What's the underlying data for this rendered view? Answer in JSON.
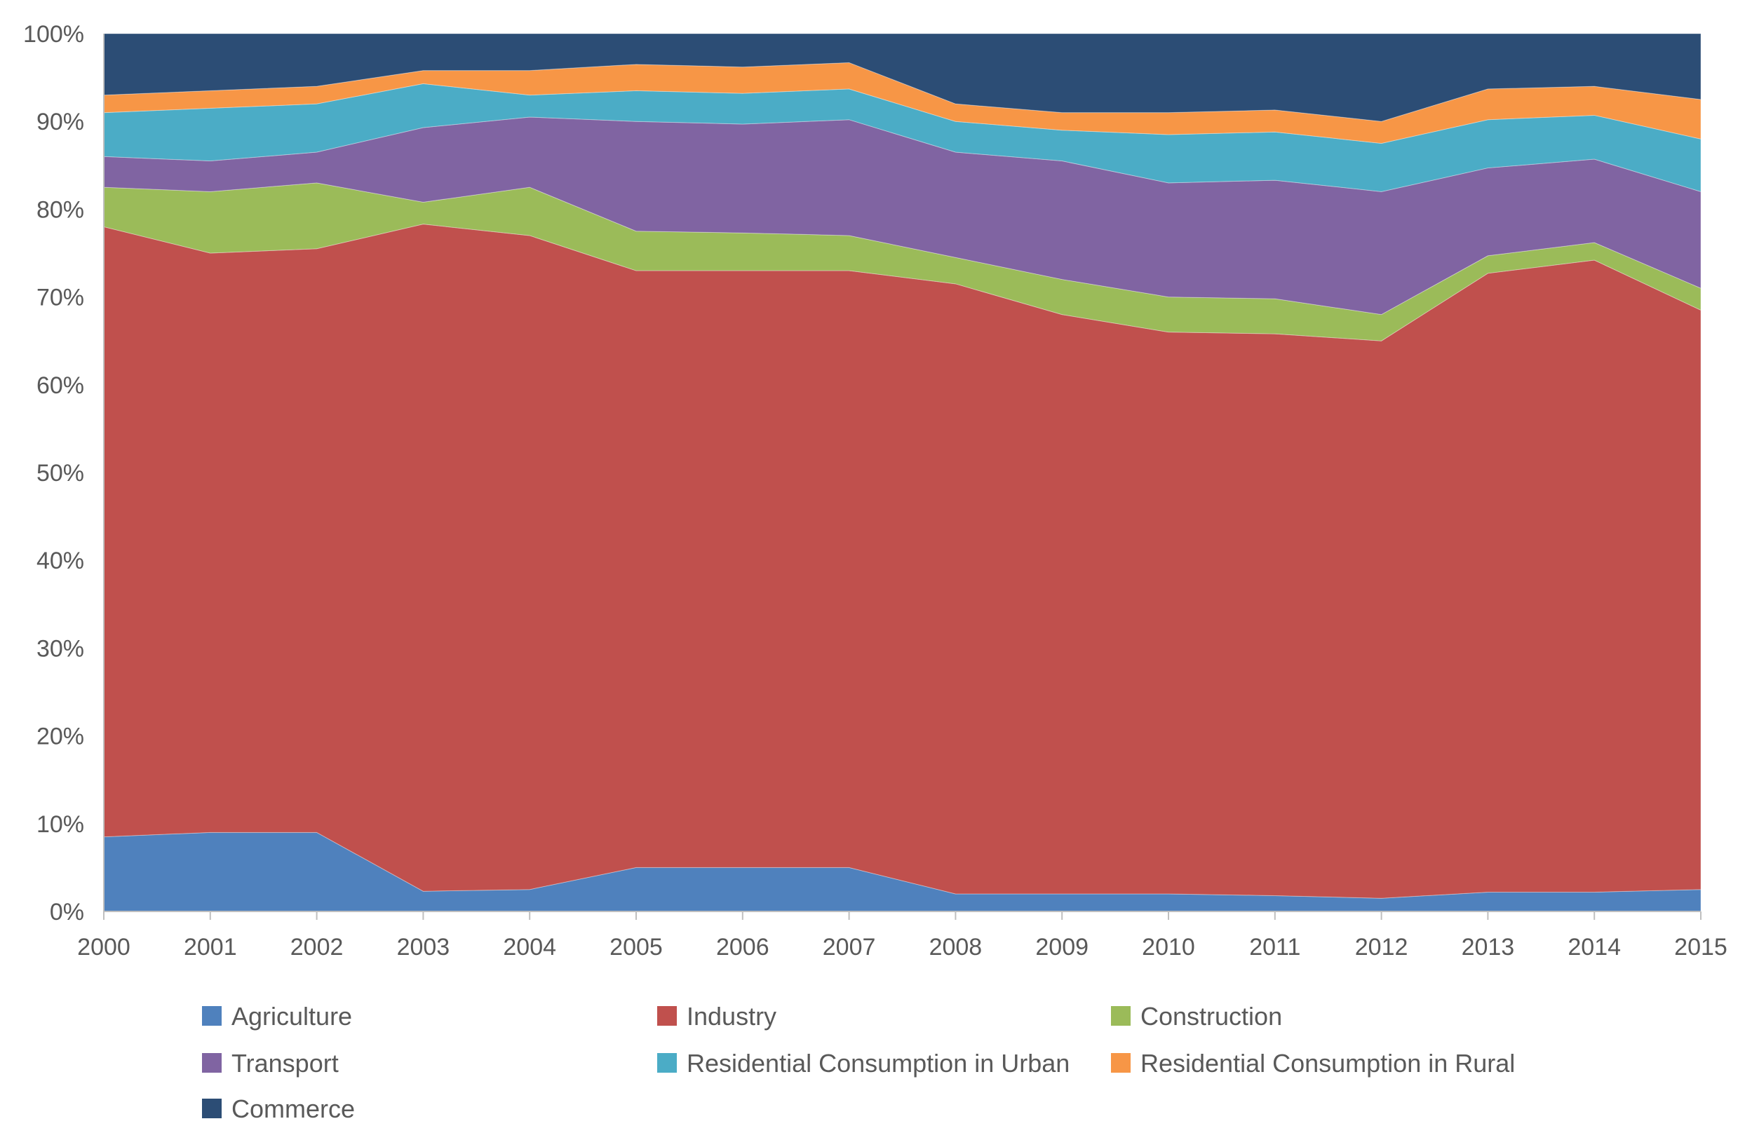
{
  "chart_data": {
    "type": "area",
    "stacking": "percent",
    "x": [
      "2000",
      "2001",
      "2002",
      "2003",
      "2004",
      "2005",
      "2006",
      "2007",
      "2008",
      "2009",
      "2010",
      "2011",
      "2012",
      "2013",
      "2014",
      "2015"
    ],
    "ylim": [
      0,
      100
    ],
    "y_ticks": [
      "0%",
      "10%",
      "20%",
      "30%",
      "40%",
      "50%",
      "60%",
      "70%",
      "80%",
      "90%",
      "100%"
    ],
    "grid": false,
    "legend_position": "bottom",
    "series": [
      {
        "name": "Agriculture",
        "color": "#4F81BD",
        "values": [
          8.5,
          9.0,
          9.0,
          2.3,
          2.5,
          5.0,
          5.0,
          5.0,
          2.0,
          2.0,
          2.0,
          1.8,
          1.5,
          2.2,
          2.2,
          2.5
        ]
      },
      {
        "name": "Industry",
        "color": "#C0504D",
        "values": [
          69.5,
          66.0,
          66.5,
          76.0,
          74.5,
          68.0,
          68.0,
          68.0,
          69.5,
          66.0,
          64.0,
          64.0,
          63.5,
          70.5,
          72.0,
          66.0
        ]
      },
      {
        "name": "Construction",
        "color": "#9BBB59",
        "values": [
          4.5,
          7.0,
          7.5,
          2.5,
          5.5,
          4.5,
          4.3,
          4.0,
          3.0,
          4.0,
          4.0,
          4.0,
          3.0,
          2.0,
          2.0,
          2.5
        ]
      },
      {
        "name": "Transport",
        "color": "#8064A2",
        "values": [
          3.5,
          3.5,
          3.5,
          8.5,
          8.0,
          12.5,
          12.4,
          13.2,
          12.0,
          13.5,
          13.0,
          13.5,
          14.0,
          10.0,
          9.5,
          11.0
        ]
      },
      {
        "name": "Residential Consumption in Urban",
        "color": "#4BACC6",
        "values": [
          5.0,
          6.0,
          5.5,
          5.0,
          2.5,
          3.5,
          3.5,
          3.5,
          3.5,
          3.5,
          5.5,
          5.5,
          5.5,
          5.5,
          5.0,
          6.0
        ]
      },
      {
        "name": "Residential Consumption in Rural",
        "color": "#F79646",
        "values": [
          2.0,
          2.0,
          2.0,
          1.5,
          2.8,
          3.0,
          3.0,
          3.0,
          2.0,
          2.0,
          2.5,
          2.5,
          2.5,
          3.5,
          3.3,
          4.5
        ]
      },
      {
        "name": "Commerce",
        "color": "#2C4D75",
        "values": [
          7.0,
          6.5,
          6.0,
          4.2,
          4.2,
          3.5,
          3.8,
          3.3,
          8.0,
          9.0,
          9.0,
          8.7,
          10.0,
          6.3,
          6.0,
          7.5
        ]
      }
    ]
  }
}
